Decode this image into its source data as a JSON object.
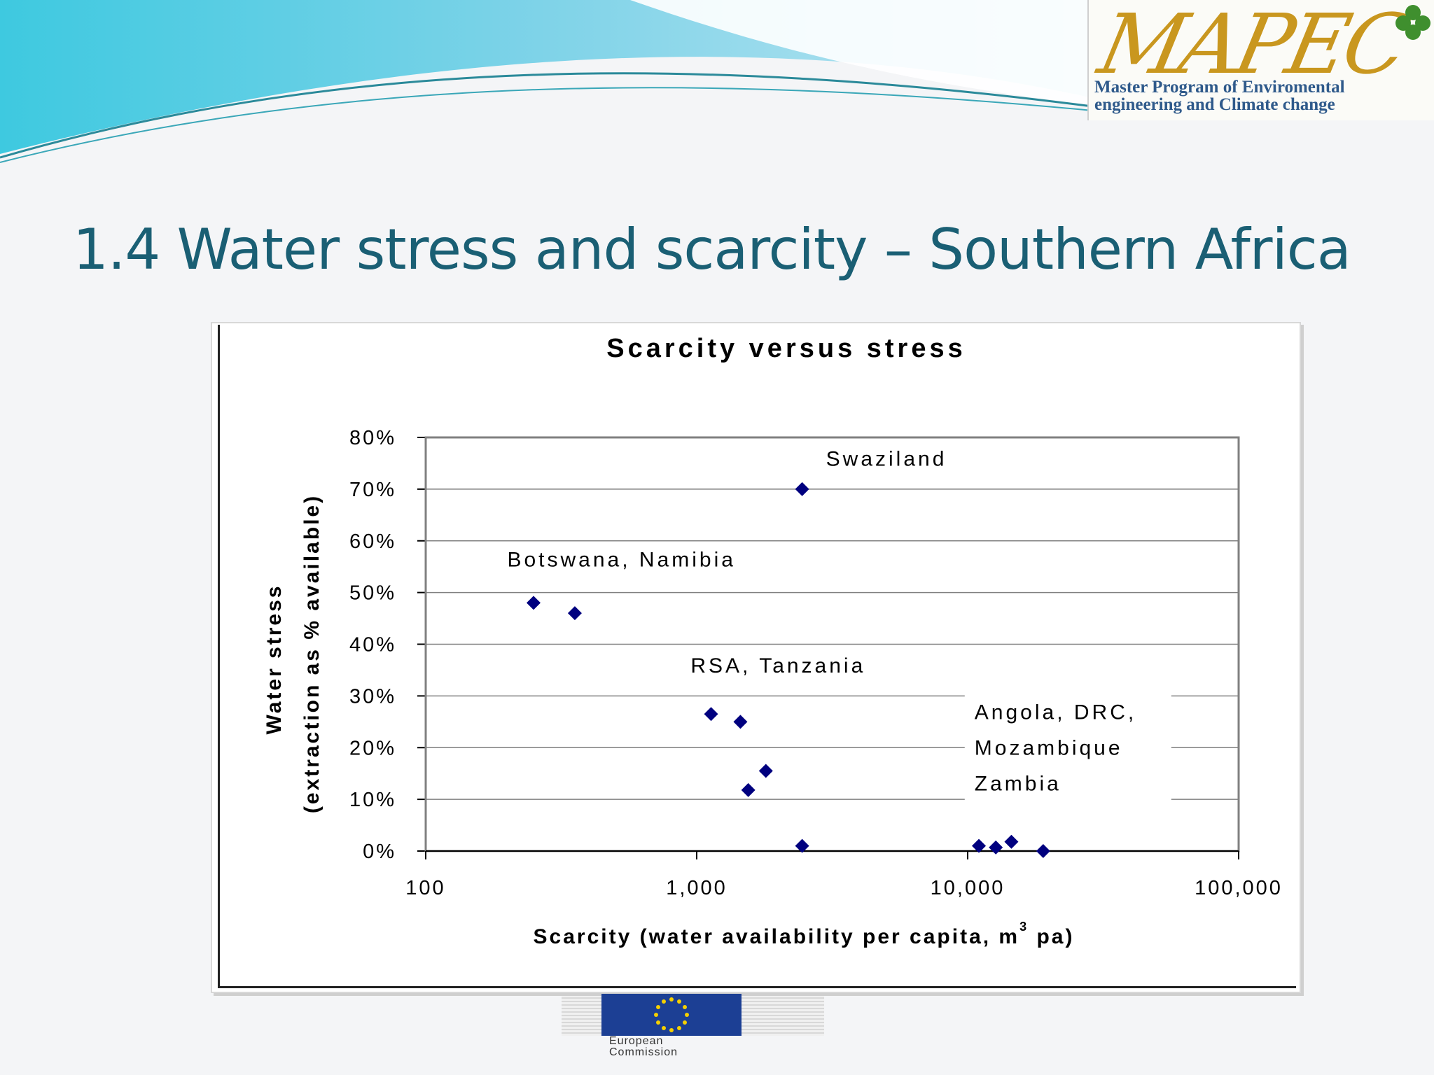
{
  "slide": {
    "title": "1.4 Water stress and scarcity – Southern Africa"
  },
  "logo": {
    "mark": "MAPEC",
    "subtitle_line1": "Master Program of Enviromental",
    "subtitle_line2": "engineering and Climate change",
    "accent": "#c9971f",
    "text_color": "#2f5a8b"
  },
  "footer_logo": {
    "line1": "European",
    "line2": "Commission",
    "icon": "eu-flag-icon"
  },
  "colors": {
    "title": "#1a5f74",
    "marker": "#00007f",
    "gridline": "#808080"
  },
  "chart_data": {
    "type": "scatter",
    "title": "Scarcity versus stress",
    "xlabel": "Scarcity (water availability per capita, m",
    "xlabel_superscript": "3",
    "xlabel_suffix": " pa)",
    "ylabel_line1": "Water stress",
    "ylabel_line2": "(extraction as % available)",
    "x_scale": "log",
    "xlim": [
      100,
      100000
    ],
    "ylim": [
      0,
      0.8
    ],
    "x_ticks": [
      100,
      1000,
      10000,
      100000
    ],
    "x_tick_labels": [
      "100",
      "1,000",
      "10,000",
      "100,000"
    ],
    "y_ticks": [
      0,
      0.1,
      0.2,
      0.3,
      0.4,
      0.5,
      0.6,
      0.7,
      0.8
    ],
    "y_tick_labels": [
      "0%",
      "10%",
      "20%",
      "30%",
      "40%",
      "50%",
      "60%",
      "70%",
      "80%"
    ],
    "grid": "horizontal",
    "marker": "diamond",
    "points": [
      {
        "x": 2450,
        "y": 0.7
      },
      {
        "x": 250,
        "y": 0.48
      },
      {
        "x": 355,
        "y": 0.46
      },
      {
        "x": 1130,
        "y": 0.265
      },
      {
        "x": 1450,
        "y": 0.25
      },
      {
        "x": 1800,
        "y": 0.155
      },
      {
        "x": 1550,
        "y": 0.118
      },
      {
        "x": 2450,
        "y": 0.01
      },
      {
        "x": 11000,
        "y": 0.01
      },
      {
        "x": 12700,
        "y": 0.007
      },
      {
        "x": 14500,
        "y": 0.018
      },
      {
        "x": 19000,
        "y": 0.0
      }
    ],
    "annotations": [
      {
        "lines": [
          "Swaziland"
        ],
        "x": 3000,
        "y": 0.745
      },
      {
        "lines": [
          "Botswana, Namibia"
        ],
        "x": 200,
        "y": 0.55
      },
      {
        "lines": [
          "RSA, Tanzania"
        ],
        "x": 950,
        "y": 0.345
      },
      {
        "lines": [
          "Angola, DRC,",
          "Mozambique",
          "Zambia"
        ],
        "x": 10600,
        "y": 0.255
      }
    ]
  }
}
